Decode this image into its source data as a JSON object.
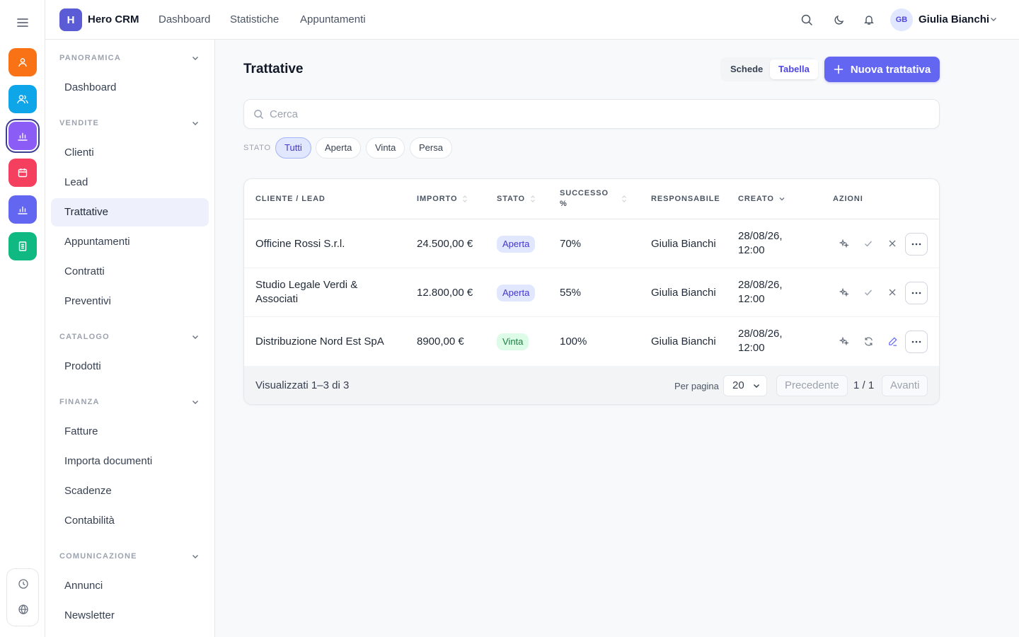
{
  "app": {
    "logo_letter": "H",
    "name": "Hero CRM"
  },
  "topnav": [
    "Dashboard",
    "Statistiche",
    "Appuntamenti"
  ],
  "user": {
    "initials": "GB",
    "name": "Giulia Bianchi"
  },
  "rail": {
    "apps": [
      {
        "icon": "user-icon",
        "color": "#f97316"
      },
      {
        "icon": "users-icon",
        "color": "#0ea5e9"
      },
      {
        "icon": "bar-chart-icon",
        "color": "#8b5cf6",
        "active": true
      },
      {
        "icon": "calendar-icon",
        "color": "#f43f5e"
      },
      {
        "icon": "bar-chart-icon",
        "color": "#6366f1"
      },
      {
        "icon": "document-icon",
        "color": "#10b981"
      }
    ]
  },
  "sidebar": {
    "sections": [
      {
        "title": "PANORAMICA",
        "items": [
          "Dashboard"
        ]
      },
      {
        "title": "VENDITE",
        "items": [
          "Clienti",
          "Lead",
          "Trattative",
          "Appuntamenti",
          "Contratti",
          "Preventivi"
        ]
      },
      {
        "title": "CATALOGO",
        "items": [
          "Prodotti"
        ]
      },
      {
        "title": "FINANZA",
        "items": [
          "Fatture",
          "Importa documenti",
          "Scadenze",
          "Contabilità"
        ]
      },
      {
        "title": "COMUNICAZIONE",
        "items": [
          "Annunci",
          "Newsletter"
        ]
      }
    ],
    "active_item": "Trattative"
  },
  "page": {
    "title": "Trattative",
    "view_toggle": {
      "cards": "Schede",
      "table": "Tabella",
      "selected": "Tabella"
    },
    "new_button": "Nuova trattativa",
    "search_placeholder": "Cerca",
    "filter_label": "STATO",
    "filters": [
      "Tutti",
      "Aperta",
      "Vinta",
      "Persa"
    ],
    "selected_filter": "Tutti"
  },
  "table": {
    "headers": {
      "client": "CLIENTE / LEAD",
      "amount": "IMPORTO",
      "status": "STATO",
      "success_1": "SUCCESSO",
      "success_2": "%",
      "owner": "RESPONSABILE",
      "created": "CREATO",
      "actions": "AZIONI"
    },
    "rows": [
      {
        "client_1": "Officine Rossi S.r.l.",
        "client_2": "",
        "amount": "24.500,00 €",
        "status": "Aperta",
        "status_color": "#4338ca",
        "success": "70%",
        "owner": "Giulia Bianchi",
        "created_1": "28/08/26,",
        "created_2": "12:00",
        "actions": [
          "sparkle-icon",
          "check-icon",
          "close-icon"
        ]
      },
      {
        "client_1": "Studio Legale Verdi &",
        "client_2": "Associati",
        "amount": "12.800,00 €",
        "status": "Aperta",
        "status_color": "#4338ca",
        "success": "55%",
        "owner": "Giulia Bianchi",
        "created_1": "28/08/26,",
        "created_2": "12:00",
        "actions": [
          "sparkle-icon",
          "check-icon",
          "close-icon"
        ]
      },
      {
        "client_1": "Distribuzione Nord Est SpA",
        "client_2": "",
        "amount": "8900,00 €",
        "status": "Vinta",
        "status_color": "#15803d",
        "success": "100%",
        "owner": "Giulia Bianchi",
        "created_1": "28/08/26,",
        "created_2": "12:00",
        "actions": [
          "sparkle-icon",
          "refresh-icon",
          "edit-icon"
        ]
      }
    ],
    "footer": {
      "summary": "Visualizzati 1–3 di 3",
      "per_page_label": "Per pagina",
      "per_page_value": "20",
      "prev": "Precedente",
      "page": "1 / 1",
      "next": "Avanti"
    }
  }
}
